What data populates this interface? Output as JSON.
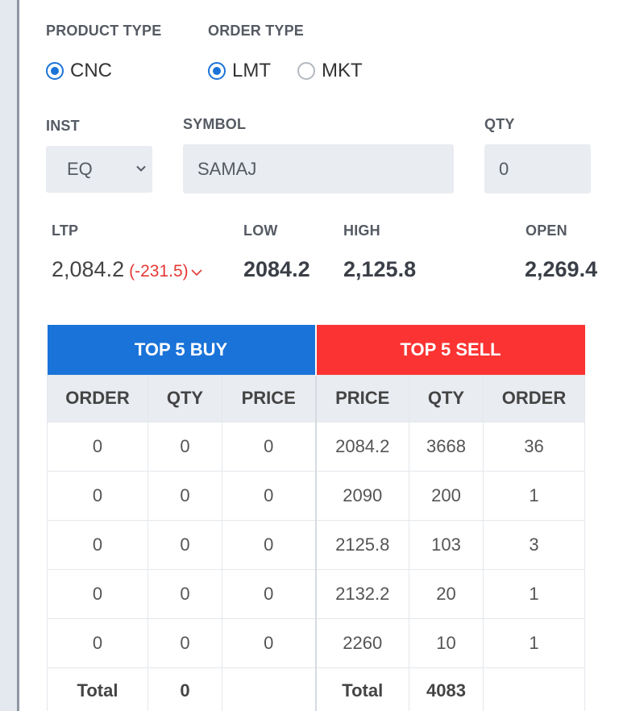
{
  "product_type": {
    "label": "PRODUCT TYPE",
    "options": [
      {
        "label": "CNC",
        "checked": true
      }
    ]
  },
  "order_type": {
    "label": "ORDER TYPE",
    "options": [
      {
        "label": "LMT",
        "checked": true
      },
      {
        "label": "MKT",
        "checked": false
      }
    ]
  },
  "inst": {
    "label": "INST",
    "value": "EQ"
  },
  "symbol": {
    "label": "SYMBOL",
    "value": "SAMAJ"
  },
  "qty": {
    "label": "QTY",
    "value": "0"
  },
  "quote": {
    "ltp_label": "LTP",
    "ltp_value": "2,084.2",
    "ltp_change": "(-231.5)",
    "low_label": "LOW",
    "low_value": "2084.2",
    "high_label": "HIGH",
    "high_value": "2,125.8",
    "open_label": "OPEN",
    "open_value": "2,269.4"
  },
  "depth": {
    "buy_title": "TOP 5 BUY",
    "sell_title": "TOP 5 SELL",
    "columns": [
      "ORDER",
      "QTY",
      "PRICE",
      "PRICE",
      "QTY",
      "ORDER"
    ],
    "rows": [
      [
        "0",
        "0",
        "0",
        "2084.2",
        "3668",
        "36"
      ],
      [
        "0",
        "0",
        "0",
        "2090",
        "200",
        "1"
      ],
      [
        "0",
        "0",
        "0",
        "2125.8",
        "103",
        "3"
      ],
      [
        "0",
        "0",
        "0",
        "2132.2",
        "20",
        "1"
      ],
      [
        "0",
        "0",
        "0",
        "2260",
        "10",
        "1"
      ]
    ],
    "total_label": "Total",
    "buy_total_qty": "0",
    "sell_total_qty": "4083"
  },
  "colors": {
    "accent_blue": "#1a73d9",
    "sell_red": "#fb3333",
    "down_red": "#e53935"
  },
  "icons": {
    "inst_dropdown": "chevron-down-icon",
    "ltp_trend": "chevron-down-icon"
  }
}
